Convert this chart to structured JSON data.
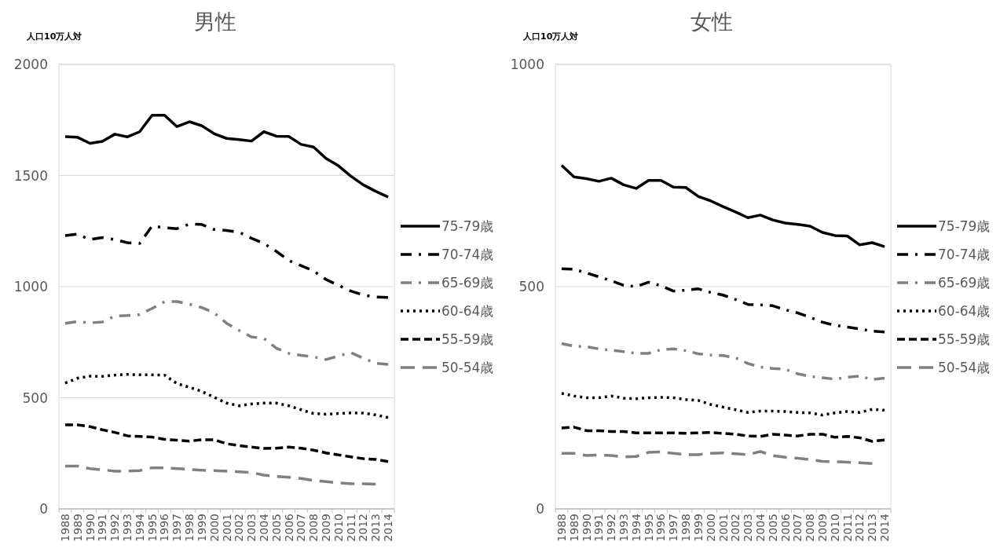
{
  "chart_data": [
    {
      "type": "line",
      "title": "男性",
      "ylabel": "人口10万人対",
      "categories": [
        "1988",
        "1989",
        "1990",
        "1991",
        "1992",
        "1993",
        "1994",
        "1995",
        "1996",
        "1997",
        "1998",
        "1999",
        "2000",
        "2001",
        "2002",
        "2003",
        "2004",
        "2005",
        "2006",
        "2007",
        "2008",
        "2009",
        "2010",
        "2011",
        "2012",
        "2013",
        "2014"
      ],
      "ylim": [
        0,
        2000
      ],
      "yticks": [
        0,
        500,
        1000,
        1500,
        2000
      ],
      "grid": "y",
      "legend": "right",
      "series": [
        {
          "name": "75-79歳",
          "color": "#000000",
          "line_style": "solid",
          "values": [
            1675,
            1672,
            1645,
            1654,
            1686,
            1674,
            1697,
            1771,
            1771,
            1720,
            1742,
            1724,
            1688,
            1667,
            1662,
            1655,
            1697,
            1677,
            1676,
            1640,
            1628,
            1577,
            1544,
            1497,
            1458,
            1429,
            1403
          ]
        },
        {
          "name": "70-74歳",
          "color": "#000000",
          "line_style": "dashdot",
          "values": [
            1230,
            1236,
            1212,
            1221,
            1212,
            1198,
            1194,
            1273,
            1265,
            1261,
            1281,
            1280,
            1257,
            1253,
            1245,
            1218,
            1194,
            1159,
            1118,
            1094,
            1071,
            1032,
            1006,
            980,
            962,
            953,
            951
          ]
        },
        {
          "name": "65-69歳",
          "color": "#808080",
          "line_style": "dashdot",
          "values": [
            835,
            843,
            837,
            841,
            868,
            870,
            874,
            902,
            932,
            933,
            921,
            906,
            882,
            835,
            803,
            774,
            767,
            723,
            700,
            691,
            684,
            672,
            688,
            703,
            678,
            655,
            650
          ]
        },
        {
          "name": "60-64歳",
          "color": "#000000",
          "line_style": "dotted",
          "values": [
            566,
            588,
            597,
            596,
            602,
            605,
            603,
            603,
            602,
            564,
            547,
            529,
            502,
            476,
            464,
            472,
            476,
            476,
            464,
            446,
            429,
            426,
            429,
            432,
            431,
            423,
            411
          ]
        },
        {
          "name": "55-59歳",
          "color": "#000000",
          "line_style": "dashed",
          "values": [
            378,
            378,
            370,
            356,
            344,
            329,
            326,
            323,
            313,
            309,
            305,
            311,
            311,
            293,
            285,
            278,
            272,
            273,
            278,
            273,
            264,
            252,
            243,
            234,
            226,
            223,
            213
          ]
        },
        {
          "name": "50-54歳",
          "color": "#808080",
          "line_style": "longdash",
          "values": [
            193,
            193,
            181,
            176,
            170,
            170,
            172,
            185,
            185,
            181,
            178,
            174,
            172,
            170,
            167,
            164,
            152,
            146,
            142,
            137,
            128,
            123,
            117,
            113,
            113,
            111,
            null
          ]
        }
      ]
    },
    {
      "type": "line",
      "title": "女性",
      "ylabel": "人口10万人対",
      "categories": [
        "1988",
        "1989",
        "1990",
        "1991",
        "1992",
        "1993",
        "1994",
        "1995",
        "1996",
        "1997",
        "1998",
        "1999",
        "2000",
        "2001",
        "2002",
        "2003",
        "2004",
        "2005",
        "2006",
        "2007",
        "2008",
        "2009",
        "2010",
        "2011",
        "2012",
        "2013",
        "2014"
      ],
      "ylim": [
        0,
        1000
      ],
      "yticks": [
        0,
        500,
        1000
      ],
      "grid": "y",
      "legend": "right",
      "series": [
        {
          "name": "75-79歳",
          "color": "#000000",
          "line_style": "solid",
          "values": [
            773,
            747,
            743,
            737,
            744,
            729,
            721,
            739,
            739,
            724,
            723,
            703,
            693,
            680,
            668,
            655,
            661,
            650,
            643,
            640,
            636,
            622,
            615,
            614,
            594,
            599,
            590
          ]
        },
        {
          "name": "70-74歳",
          "color": "#000000",
          "line_style": "dashdot",
          "values": [
            540,
            539,
            531,
            522,
            513,
            503,
            500,
            510,
            502,
            490,
            492,
            495,
            487,
            481,
            471,
            460,
            459,
            457,
            448,
            441,
            431,
            420,
            413,
            409,
            405,
            400,
            398
          ]
        },
        {
          "name": "65-69歳",
          "color": "#808080",
          "line_style": "dashdot",
          "values": [
            372,
            366,
            365,
            360,
            357,
            354,
            350,
            350,
            358,
            360,
            356,
            349,
            346,
            345,
            340,
            327,
            319,
            316,
            314,
            304,
            298,
            295,
            292,
            296,
            299,
            291,
            294
          ]
        },
        {
          "name": "60-64歳",
          "color": "#000000",
          "line_style": "dotted",
          "values": [
            260,
            254,
            250,
            250,
            254,
            249,
            248,
            250,
            251,
            250,
            246,
            244,
            235,
            229,
            223,
            217,
            220,
            220,
            219,
            217,
            216,
            211,
            216,
            219,
            217,
            224,
            222
          ]
        },
        {
          "name": "55-59歳",
          "color": "#000000",
          "line_style": "dashed",
          "values": [
            182,
            184,
            176,
            176,
            174,
            174,
            171,
            171,
            171,
            171,
            170,
            171,
            172,
            170,
            168,
            164,
            163,
            168,
            166,
            164,
            168,
            168,
            161,
            163,
            160,
            152,
            155
          ]
        },
        {
          "name": "50-54歳",
          "color": "#808080",
          "line_style": "longdash",
          "values": [
            125,
            125,
            120,
            121,
            120,
            117,
            118,
            127,
            128,
            125,
            122,
            122,
            125,
            126,
            124,
            122,
            129,
            120,
            116,
            114,
            111,
            107,
            106,
            105,
            104,
            102,
            null
          ]
        }
      ]
    }
  ]
}
